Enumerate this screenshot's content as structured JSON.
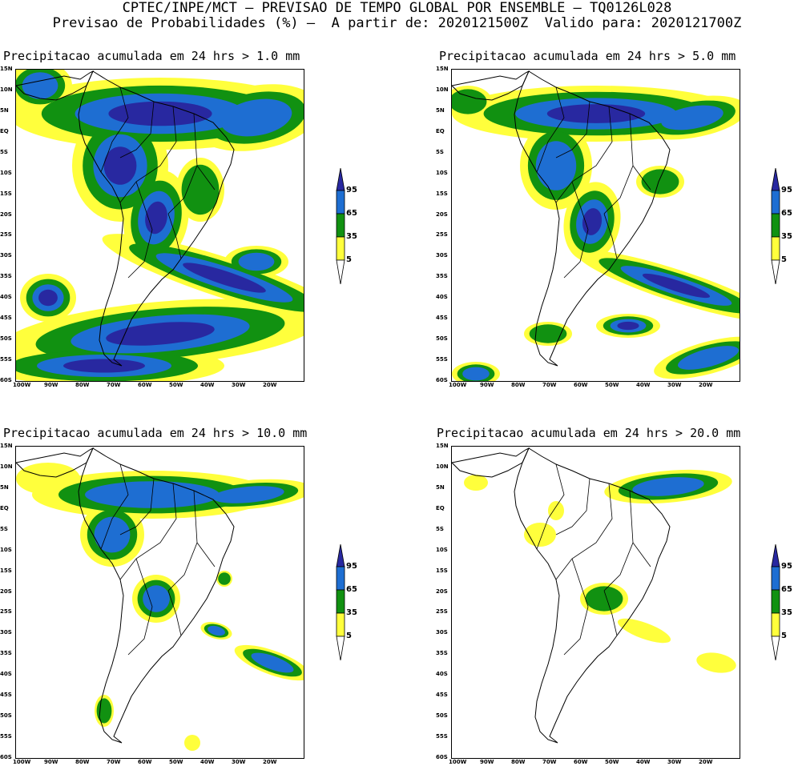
{
  "header": {
    "line1": "CPTEC/INPE/MCT – PREVISAO DE TEMPO GLOBAL POR ENSEMBLE – TQ0126L028",
    "line2": "Previsao de Probabilidades (%) –  A partir de: 2020121500Z  Valido para: 2020121700Z"
  },
  "lat_ticks": [
    "15N",
    "10N",
    "5N",
    "EQ",
    "5S",
    "10S",
    "15S",
    "20S",
    "25S",
    "30S",
    "35S",
    "40S",
    "45S",
    "50S",
    "55S",
    "60S"
  ],
  "lon_ticks": [
    "100W",
    "90W",
    "80W",
    "70W",
    "60W",
    "50W",
    "40W",
    "30W",
    "20W"
  ],
  "colorbar": {
    "levels": [
      "95",
      "65",
      "35",
      "5"
    ],
    "colors": [
      "#2828a0",
      "#1e6ed2",
      "#119111",
      "#ffff3c"
    ]
  },
  "panels": [
    {
      "id": "p1",
      "title": "Precipitacao acumulada em 24 hrs > 1.0 mm",
      "intensity": 4
    },
    {
      "id": "p2",
      "title": "Precipitacao acumulada em 24 hrs > 5.0 mm",
      "intensity": 3
    },
    {
      "id": "p3",
      "title": "Precipitacao acumulada em 24 hrs > 10.0 mm",
      "intensity": 2
    },
    {
      "id": "p4",
      "title": "Precipitacao acumulada em 24 hrs > 20.0 mm",
      "intensity": 1
    }
  ]
}
